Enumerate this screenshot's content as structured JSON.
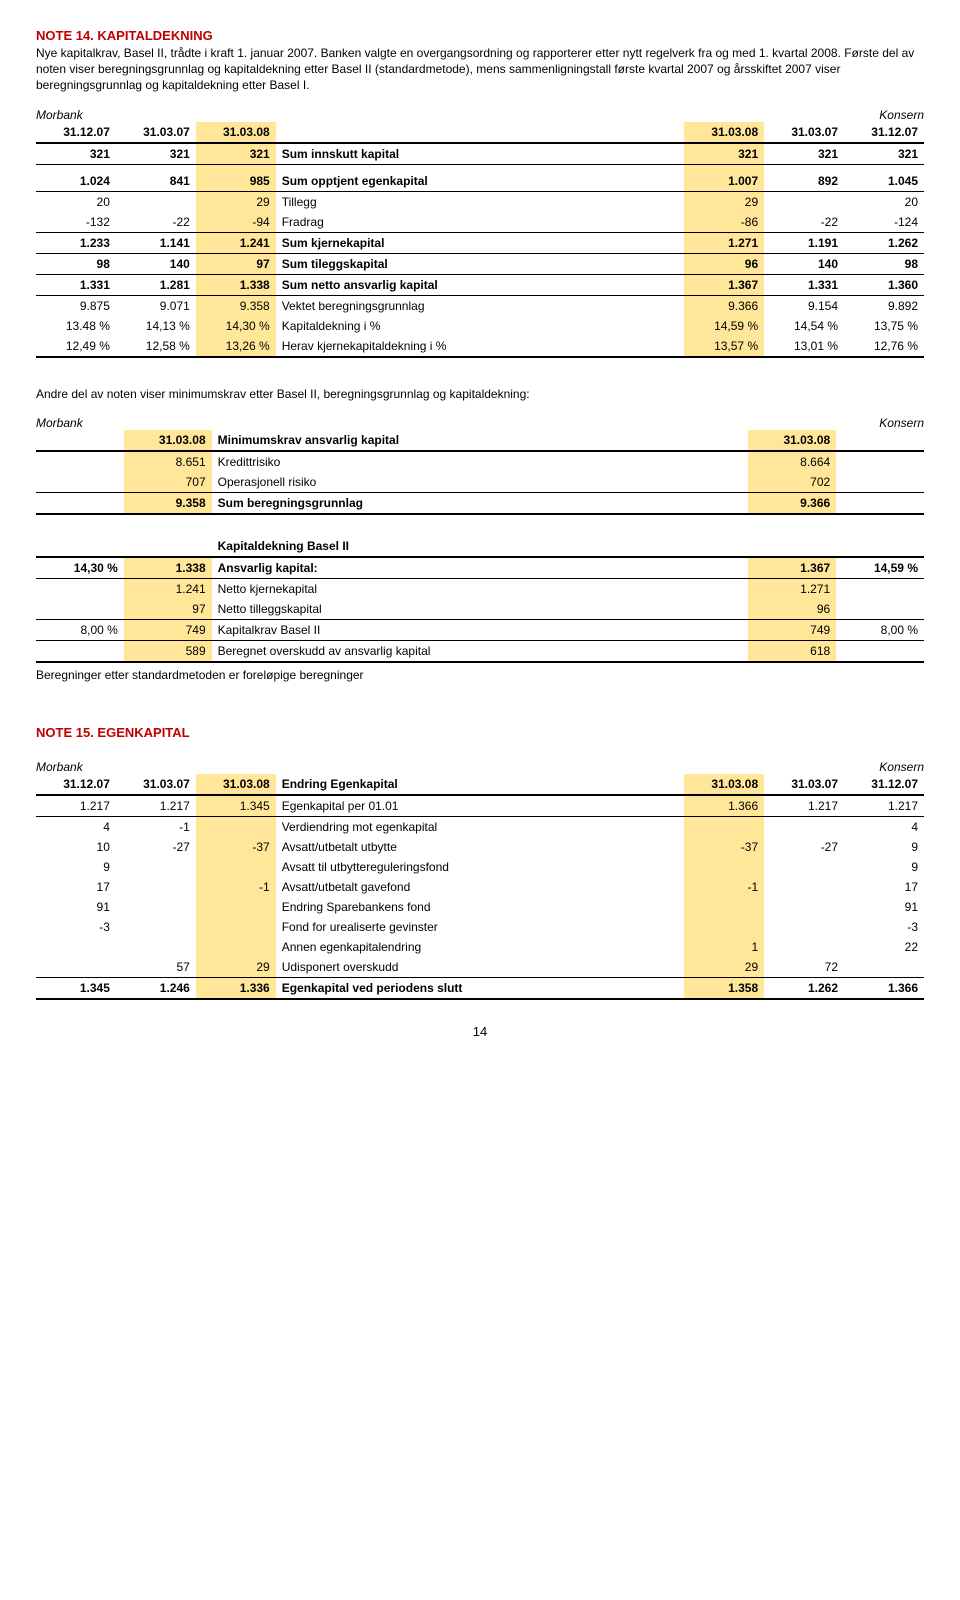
{
  "note14": {
    "title": "NOTE 14. KAPITALDEKNING",
    "para": "Nye kapitalkrav, Basel II, trådte i kraft 1. januar 2007. Banken valgte en overgangsordning og rapporterer etter nytt regelverk fra og med 1. kvartal 2008. Første del av noten viser beregningsgrunnlag og kapitaldekning etter Basel II (standardmetode), mens sammenligningstall første kvartal 2007 og årsskiftet 2007 viser beregningsgrunnlag og kapitaldekning etter Basel I.",
    "morbank_label": "Morbank",
    "konsern_label": "Konsern",
    "headers": [
      "31.12.07",
      "31.03.07",
      "31.03.08",
      "",
      "31.03.08",
      "31.03.07",
      "31.12.07"
    ],
    "rows": [
      {
        "type": "data",
        "bold": true,
        "cells": [
          "321",
          "321",
          "321",
          "Sum innskutt kapital",
          "321",
          "321",
          "321"
        ],
        "hl": [
          2,
          4
        ],
        "bt": true,
        "bb": true
      },
      {
        "type": "spacer"
      },
      {
        "type": "data",
        "bold": true,
        "cells": [
          "1.024",
          "841",
          "985",
          "Sum opptjent egenkapital",
          "1.007",
          "892",
          "1.045"
        ],
        "hl": [
          2,
          4
        ],
        "bb": true
      },
      {
        "type": "data",
        "cells": [
          "20",
          "",
          "29",
          "Tillegg",
          "29",
          "",
          "20"
        ],
        "hl": [
          2,
          4
        ]
      },
      {
        "type": "data",
        "cells": [
          "-132",
          "-22",
          "-94",
          "Fradrag",
          "-86",
          "-22",
          "-124"
        ],
        "hl": [
          2,
          4
        ]
      },
      {
        "type": "data",
        "bold": true,
        "cells": [
          "1.233",
          "1.141",
          "1.241",
          "Sum kjernekapital",
          "1.271",
          "1.191",
          "1.262"
        ],
        "hl": [
          2,
          4
        ],
        "bt": true
      },
      {
        "type": "data",
        "bold": true,
        "cells": [
          "98",
          "140",
          "97",
          "Sum tileggskapital",
          "96",
          "140",
          "98"
        ],
        "hl": [
          2,
          4
        ],
        "bt": true
      },
      {
        "type": "data",
        "bold": true,
        "cells": [
          "1.331",
          "1.281",
          "1.338",
          "Sum netto ansvarlig kapital",
          "1.367",
          "1.331",
          "1.360"
        ],
        "hl": [
          2,
          4
        ],
        "bt": true,
        "bb": true
      },
      {
        "type": "data",
        "cells": [
          "9.875",
          "9.071",
          "9.358",
          "Vektet beregningsgrunnlag",
          "9.366",
          "9.154",
          "9.892"
        ],
        "hl": [
          2,
          4
        ]
      },
      {
        "type": "data",
        "cells": [
          "13.48 %",
          "14,13 %",
          "14,30 %",
          "Kapitaldekning i %",
          "14,59 %",
          "14,54 %",
          "13,75 %"
        ],
        "hl": [
          2,
          4
        ]
      },
      {
        "type": "data",
        "cells": [
          "12,49 %",
          "12,58 %",
          "13,26 %",
          "Herav kjernekapitaldekning i %",
          "13,57 %",
          "13,01 %",
          "12,76 %"
        ],
        "hl": [
          2,
          4
        ],
        "bbthick": true
      }
    ]
  },
  "mid_para": "Andre del av noten viser minimumskrav etter Basel II, beregningsgrunnlag og kapitaldekning:",
  "table2": {
    "morbank_label": "Morbank",
    "konsern_label": "Konsern",
    "rows": [
      {
        "cells": [
          "",
          "31.03.08",
          "Minimumskrav ansvarlig kapital",
          "31.03.08",
          ""
        ],
        "bold": true,
        "hl": [
          1,
          3
        ],
        "bbthick": true
      },
      {
        "cells": [
          "",
          "8.651",
          "Kredittrisiko",
          "8.664",
          ""
        ],
        "hl": [
          1,
          3
        ]
      },
      {
        "cells": [
          "",
          "707",
          "Operasjonell risiko",
          "702",
          ""
        ],
        "hl": [
          1,
          3
        ]
      },
      {
        "cells": [
          "",
          "9.358",
          "Sum beregningsgrunnlag",
          "9.366",
          ""
        ],
        "bold": true,
        "hl": [
          1,
          3
        ],
        "bt": true,
        "bbthick": true
      },
      {
        "type": "spacer2"
      },
      {
        "cells": [
          "",
          "",
          "Kapitaldekning Basel II",
          "",
          ""
        ],
        "bold": true,
        "bbthick": true
      },
      {
        "cells": [
          "14,30 %",
          "1.338",
          "Ansvarlig kapital:",
          "1.367",
          "14,59 %"
        ],
        "bold": true,
        "hl": [
          1,
          3
        ],
        "bbthin": true
      },
      {
        "cells": [
          "",
          "1.241",
          "Netto kjernekapital",
          "1.271",
          ""
        ],
        "hl": [
          1,
          3
        ]
      },
      {
        "cells": [
          "",
          "97",
          "Netto tilleggskapital",
          "96",
          ""
        ],
        "hl": [
          1,
          3
        ]
      },
      {
        "cells": [
          "8,00 %",
          "749",
          "Kapitalkrav Basel II",
          "749",
          "8,00 %"
        ],
        "hl": [
          1,
          3
        ],
        "bt": true,
        "bbthin": true
      },
      {
        "cells": [
          "",
          "589",
          "Beregnet overskudd av ansvarlig kapital",
          "618",
          ""
        ],
        "hl": [
          1,
          3
        ],
        "bbthick": true
      }
    ],
    "foot": "Beregninger etter standardmetoden er foreløpige beregninger"
  },
  "note15": {
    "title": "NOTE 15. EGENKAPITAL",
    "morbank_label": "Morbank",
    "konsern_label": "Konsern",
    "headers": [
      "31.12.07",
      "31.03.07",
      "31.03.08",
      "Endring Egenkapital",
      "31.03.08",
      "31.03.07",
      "31.12.07"
    ],
    "rows": [
      {
        "cells": [
          "1.217",
          "1.217",
          "1.345",
          "Egenkapital per 01.01",
          "1.366",
          "1.217",
          "1.217"
        ],
        "hl": [
          2,
          4
        ],
        "bbthin": true
      },
      {
        "cells": [
          "4",
          "-1",
          "",
          "Verdiendring mot egenkapital",
          "",
          "",
          "4"
        ],
        "hl": [
          2,
          4
        ]
      },
      {
        "cells": [
          "10",
          "-27",
          "-37",
          "Avsatt/utbetalt utbytte",
          "-37",
          "-27",
          "9"
        ],
        "hl": [
          2,
          4
        ]
      },
      {
        "cells": [
          "9",
          "",
          "",
          "Avsatt til utbyttereguleringsfond",
          "",
          "",
          "9"
        ],
        "hl": [
          2,
          4
        ]
      },
      {
        "cells": [
          "17",
          "",
          "-1",
          "Avsatt/utbetalt gavefond",
          "-1",
          "",
          "17"
        ],
        "hl": [
          2,
          4
        ]
      },
      {
        "cells": [
          "91",
          "",
          "",
          "Endring Sparebankens fond",
          "",
          "",
          "91"
        ],
        "hl": [
          2,
          4
        ]
      },
      {
        "cells": [
          "-3",
          "",
          "",
          "Fond for urealiserte gevinster",
          "",
          "",
          "-3"
        ],
        "hl": [
          2,
          4
        ]
      },
      {
        "cells": [
          "",
          "",
          "",
          "Annen egenkapitalendring",
          "1",
          "",
          "22"
        ],
        "hl": [
          2,
          4
        ]
      },
      {
        "cells": [
          "",
          "57",
          "29",
          "Udisponert overskudd",
          "29",
          "72",
          ""
        ],
        "hl": [
          2,
          4
        ]
      },
      {
        "cells": [
          "1.345",
          "1.246",
          "1.336",
          "Egenkapital ved periodens slutt",
          "1.358",
          "1.262",
          "1.366"
        ],
        "bold": true,
        "hl": [
          2,
          4
        ],
        "bt": true,
        "bbthick": true
      }
    ]
  },
  "page_num": "14"
}
